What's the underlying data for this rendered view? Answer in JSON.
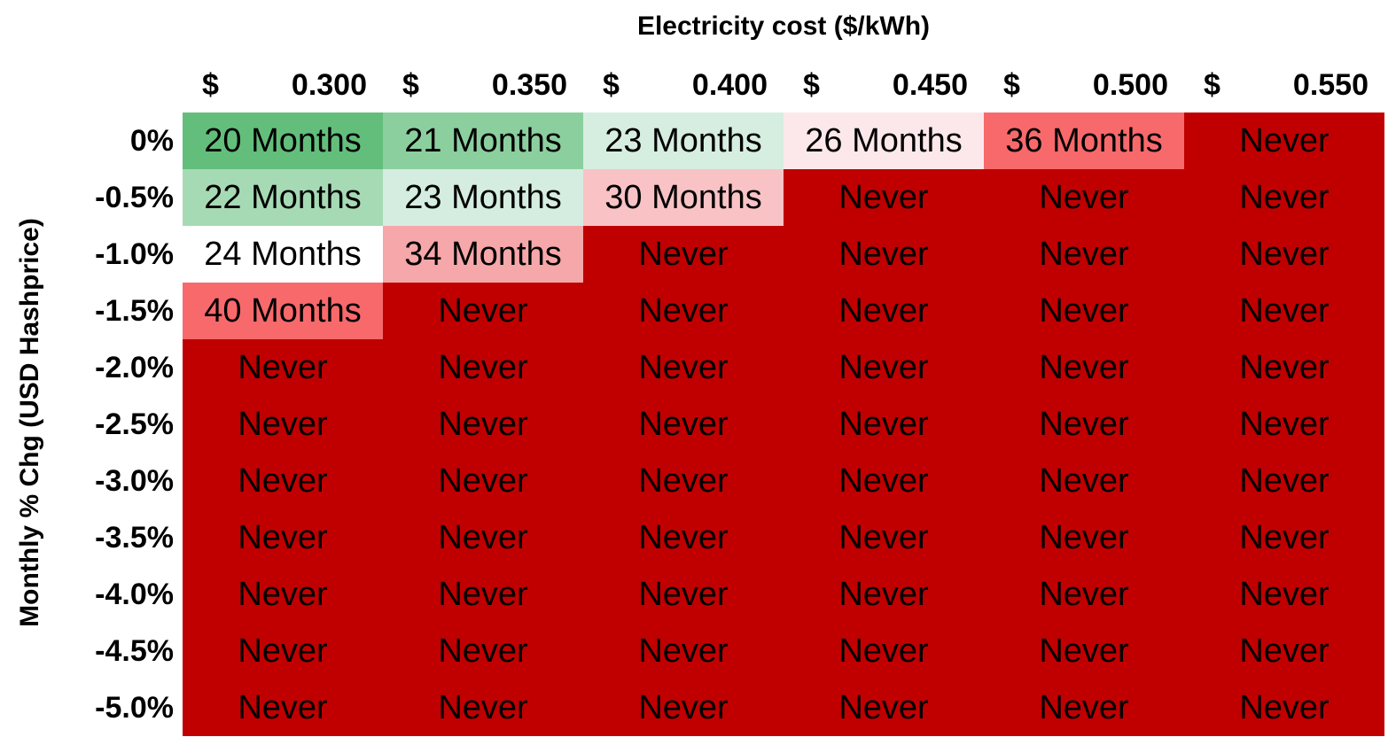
{
  "chart_data": {
    "type": "heatmap",
    "title": "",
    "xlabel": "Electricity cost ($/kWh)",
    "ylabel": "Monthly % Chg (USD Hashprice)",
    "x_currency": "$",
    "x": [
      "0.300",
      "0.350",
      "0.400",
      "0.450",
      "0.500",
      "0.550"
    ],
    "y": [
      "0%",
      "-0.5%",
      "-1.0%",
      "-1.5%",
      "-2.0%",
      "-2.5%",
      "-3.0%",
      "-3.5%",
      "-4.0%",
      "-4.5%",
      "-5.0%"
    ],
    "cells": [
      [
        "20 Months",
        "21 Months",
        "23 Months",
        "26 Months",
        "36 Months",
        "Never"
      ],
      [
        "22 Months",
        "23 Months",
        "30 Months",
        "Never",
        "Never",
        "Never"
      ],
      [
        "24 Months",
        "34 Months",
        "Never",
        "Never",
        "Never",
        "Never"
      ],
      [
        "40 Months",
        "Never",
        "Never",
        "Never",
        "Never",
        "Never"
      ],
      [
        "Never",
        "Never",
        "Never",
        "Never",
        "Never",
        "Never"
      ],
      [
        "Never",
        "Never",
        "Never",
        "Never",
        "Never",
        "Never"
      ],
      [
        "Never",
        "Never",
        "Never",
        "Never",
        "Never",
        "Never"
      ],
      [
        "Never",
        "Never",
        "Never",
        "Never",
        "Never",
        "Never"
      ],
      [
        "Never",
        "Never",
        "Never",
        "Never",
        "Never",
        "Never"
      ],
      [
        "Never",
        "Never",
        "Never",
        "Never",
        "Never",
        "Never"
      ],
      [
        "Never",
        "Never",
        "Never",
        "Never",
        "Never",
        "Never"
      ]
    ],
    "cell_colors": [
      [
        "#63be7b",
        "#8ccf9e",
        "#d6eee0",
        "#fce8ea",
        "#f8696b",
        "#c00000"
      ],
      [
        "#a6dab4",
        "#d4ede0",
        "#f9c3c6",
        "#c00000",
        "#c00000",
        "#c00000"
      ],
      [
        "#ffffff",
        "#f6a7a9",
        "#c00000",
        "#c00000",
        "#c00000",
        "#c00000"
      ],
      [
        "#f8696b",
        "#c00000",
        "#c00000",
        "#c00000",
        "#c00000",
        "#c00000"
      ],
      [
        "#c00000",
        "#c00000",
        "#c00000",
        "#c00000",
        "#c00000",
        "#c00000"
      ],
      [
        "#c00000",
        "#c00000",
        "#c00000",
        "#c00000",
        "#c00000",
        "#c00000"
      ],
      [
        "#c00000",
        "#c00000",
        "#c00000",
        "#c00000",
        "#c00000",
        "#c00000"
      ],
      [
        "#c00000",
        "#c00000",
        "#c00000",
        "#c00000",
        "#c00000",
        "#c00000"
      ],
      [
        "#c00000",
        "#c00000",
        "#c00000",
        "#c00000",
        "#c00000",
        "#c00000"
      ],
      [
        "#c00000",
        "#c00000",
        "#c00000",
        "#c00000",
        "#c00000",
        "#c00000"
      ],
      [
        "#c00000",
        "#c00000",
        "#c00000",
        "#c00000",
        "#c00000",
        "#c00000"
      ]
    ],
    "grid": false,
    "legend": "none"
  }
}
